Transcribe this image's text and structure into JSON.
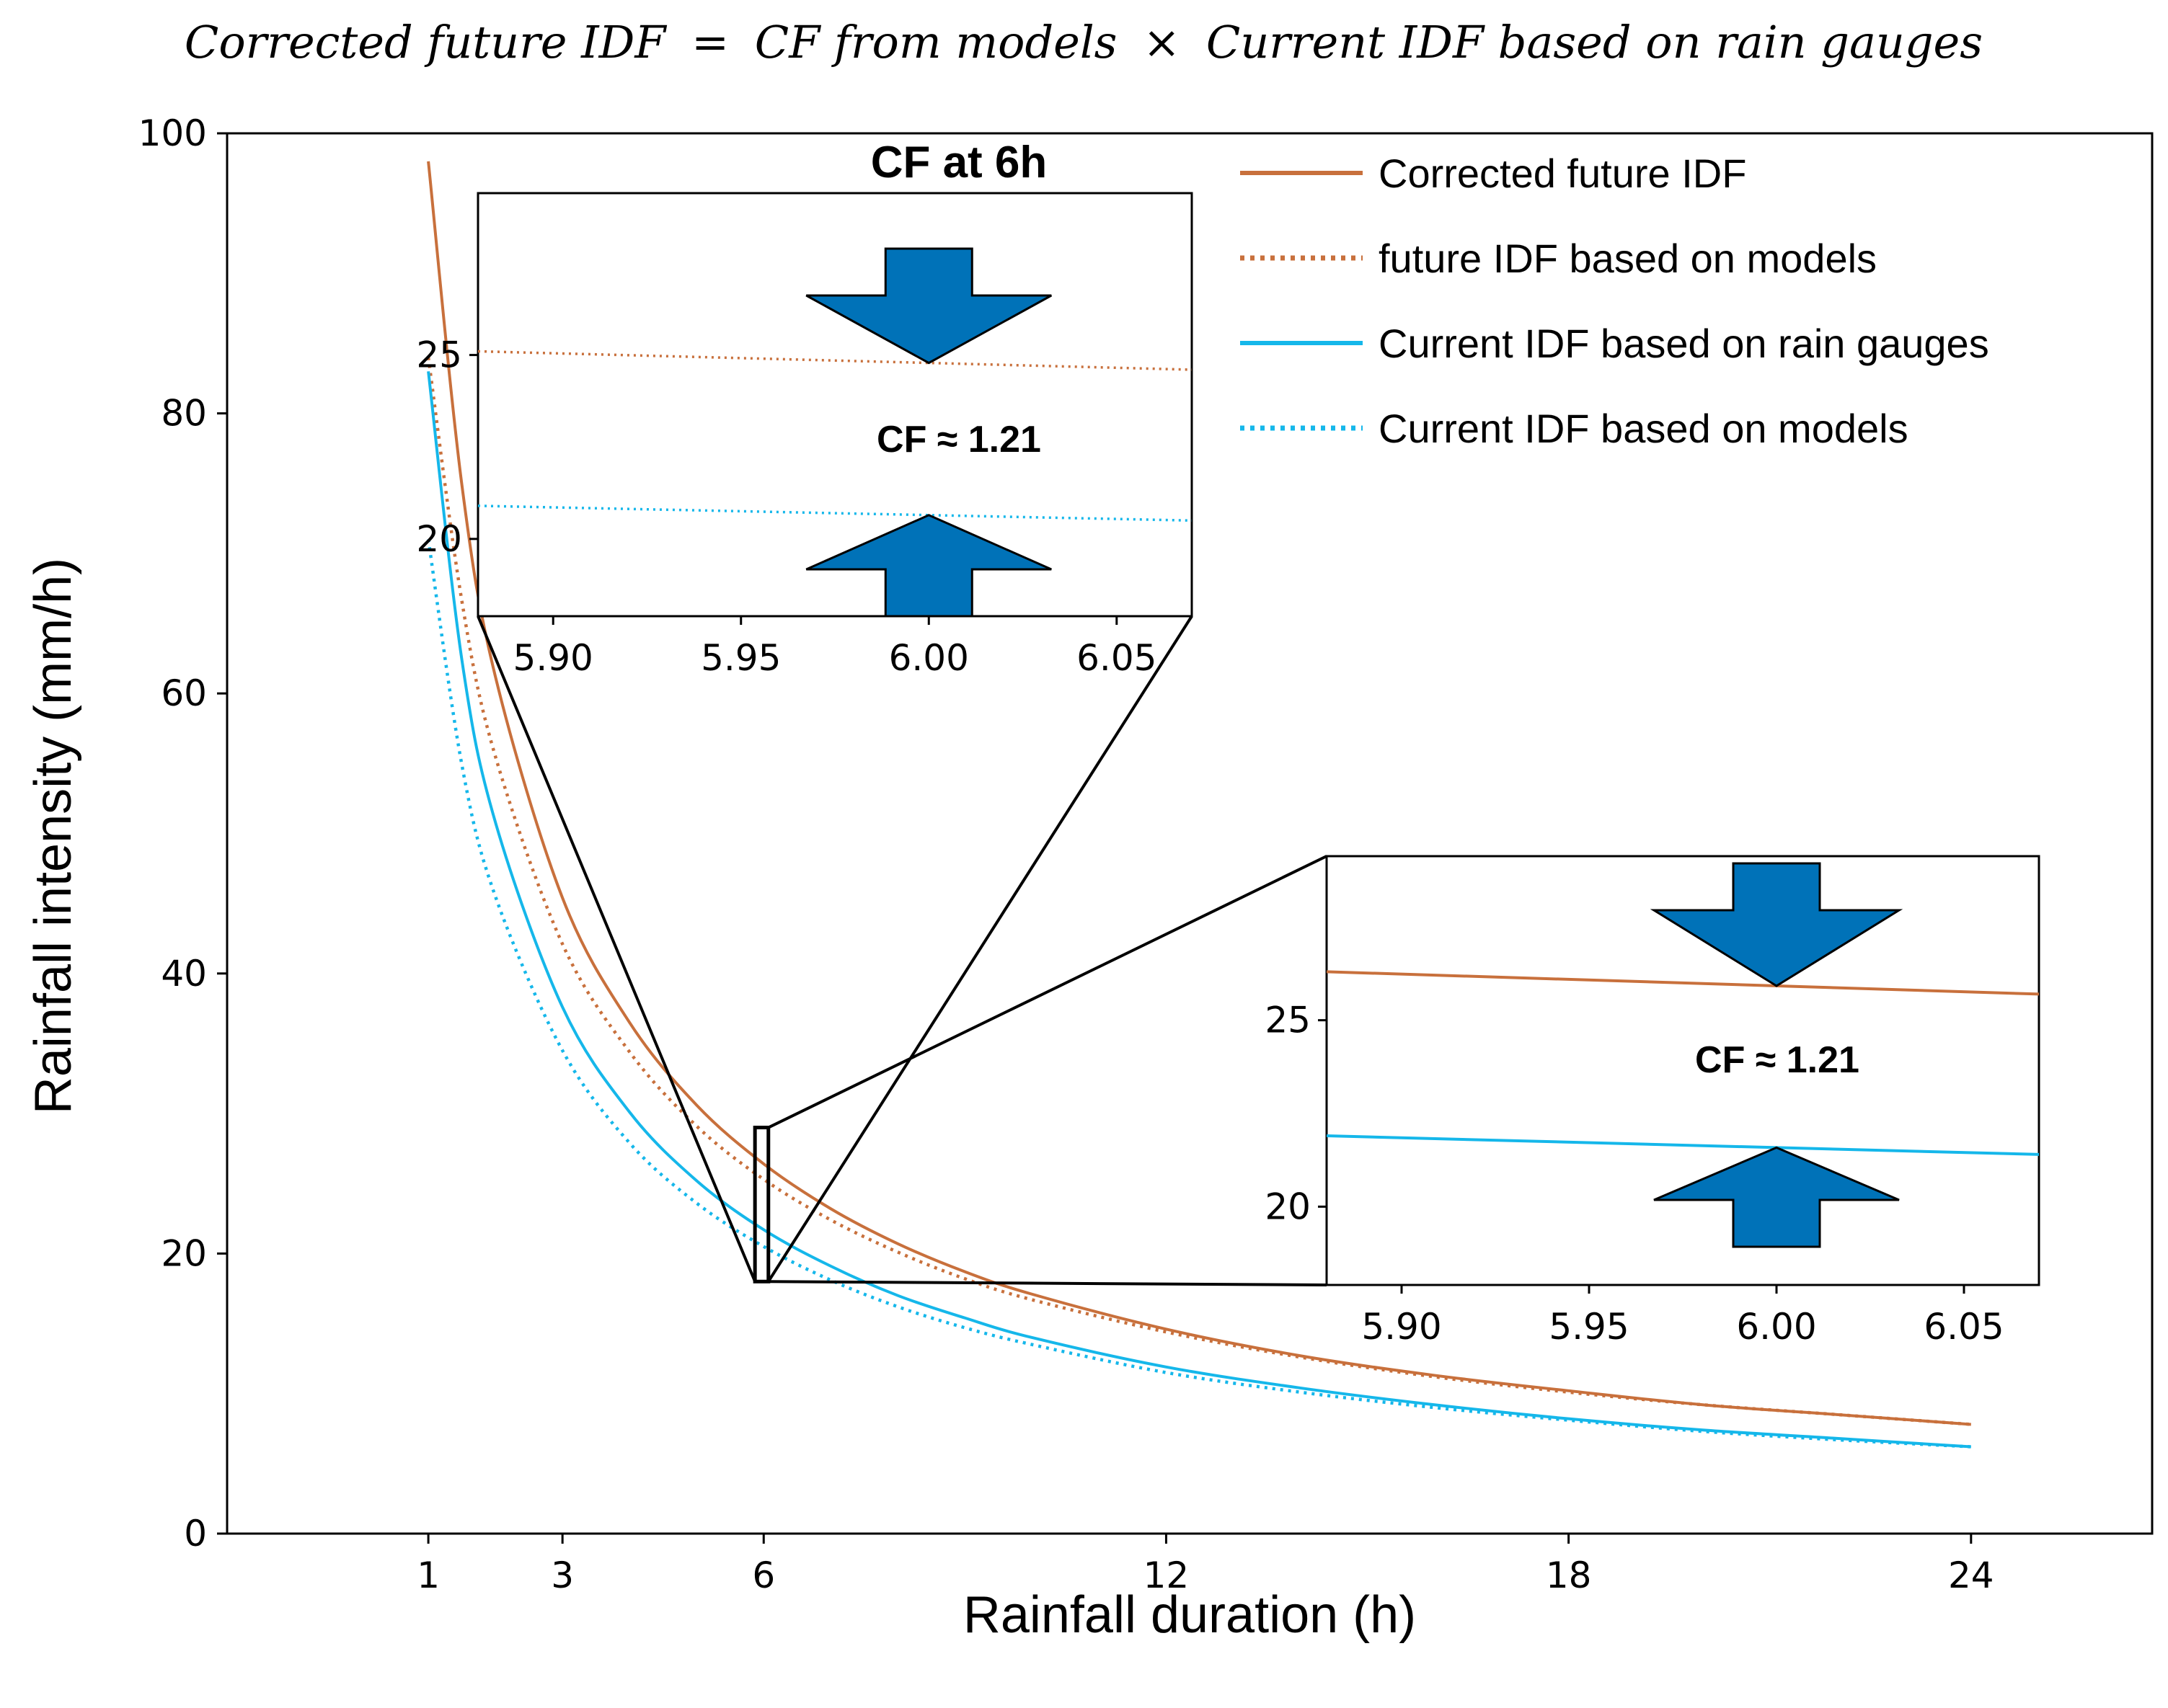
{
  "chart_data": [
    {
      "type": "line",
      "title": "Corrected future IDF = CF from models × Current IDF based on rain gauges",
      "xlabel": "Rainfall duration (h)",
      "ylabel": "Rainfall intensity (mm/h)",
      "xlim": [
        -2,
        26.7
      ],
      "ylim": [
        0,
        100
      ],
      "xticks": [
        1,
        3,
        6,
        12,
        18,
        24
      ],
      "yticks": [
        0,
        20,
        40,
        60,
        80,
        100
      ],
      "legend_position": "top-right",
      "x": [
        1,
        1.5,
        2,
        3,
        4,
        5,
        6,
        7,
        8,
        9,
        10,
        12,
        14,
        16,
        18,
        20,
        22,
        24
      ],
      "series": [
        {
          "name": "Corrected future IDF",
          "style": "solid",
          "color": "#c8703c",
          "values": [
            98.0,
            74.9,
            61.2,
            45.4,
            36.5,
            30.6,
            26.4,
            23.2,
            20.7,
            18.7,
            17.1,
            14.6,
            12.7,
            11.3,
            10.2,
            9.2,
            8.5,
            7.8
          ]
        },
        {
          "name": "future IDF based on models",
          "style": "dotted",
          "color": "#c8703c",
          "values": [
            84.0,
            66.6,
            55.5,
            42.1,
            34.4,
            29.1,
            25.3,
            22.4,
            20.1,
            18.2,
            16.7,
            14.4,
            12.6,
            11.2,
            10.1,
            9.2,
            8.5,
            7.8
          ]
        },
        {
          "name": "Current IDF based on rain gauges",
          "style": "solid",
          "color": "#15b7ea",
          "values": [
            83.0,
            62.4,
            50.8,
            37.6,
            30.1,
            25.2,
            21.7,
            19.1,
            17.0,
            15.4,
            14.0,
            11.9,
            10.4,
            9.2,
            8.2,
            7.4,
            6.8,
            6.2
          ]
        },
        {
          "name": "Current IDF based on models",
          "style": "dotted",
          "color": "#15b7ea",
          "values": [
            71.0,
            54.9,
            45.5,
            34.5,
            27.9,
            23.6,
            20.5,
            18.1,
            16.2,
            14.7,
            13.5,
            11.5,
            10.1,
            9.0,
            8.1,
            7.3,
            6.7,
            6.2
          ]
        }
      ],
      "zoom_box": {
        "x_range": [
          5.87,
          6.07
        ],
        "y_range": [
          18,
          29
        ]
      }
    },
    {
      "type": "line",
      "title": "CF at 6h",
      "xlim": [
        5.88,
        6.07
      ],
      "ylim": [
        17.9,
        29.4
      ],
      "xticks": [
        5.9,
        5.95,
        6.0,
        6.05
      ],
      "xtick_labels": [
        "5.90",
        "5.95",
        "6.00",
        "6.05"
      ],
      "yticks": [
        20,
        25
      ],
      "annotation": "CF ≈ 1.21",
      "x": [
        5.88,
        6.07
      ],
      "series": [
        {
          "name": "future IDF based on models",
          "style": "dotted",
          "color": "#c8703c",
          "values": [
            25.1,
            24.6
          ]
        },
        {
          "name": "Current IDF based on models",
          "style": "dotted",
          "color": "#15b7ea",
          "values": [
            20.9,
            20.5
          ]
        }
      ],
      "marker_x": 6.0
    },
    {
      "type": "line",
      "title": "",
      "xlim": [
        5.88,
        6.07
      ],
      "ylim": [
        17.9,
        29.4
      ],
      "xticks": [
        5.9,
        5.95,
        6.0,
        6.05
      ],
      "xtick_labels": [
        "5.90",
        "5.95",
        "6.00",
        "6.05"
      ],
      "yticks": [
        20,
        25
      ],
      "annotation": "CF ≈ 1.21",
      "x": [
        5.88,
        6.07
      ],
      "series": [
        {
          "name": "Corrected future IDF",
          "style": "solid",
          "color": "#c8703c",
          "values": [
            26.3,
            25.7
          ]
        },
        {
          "name": "Current IDF based on rain gauges",
          "style": "solid",
          "color": "#15b7ea",
          "values": [
            21.9,
            21.4
          ]
        }
      ],
      "marker_x": 6.0
    }
  ],
  "arrow_color": "#0072b8",
  "title_parts": {
    "left": "Corrected future IDF",
    "equals": "=",
    "mid": "CF from models",
    "times": "×",
    "right": "Current IDF based on rain gauges"
  }
}
